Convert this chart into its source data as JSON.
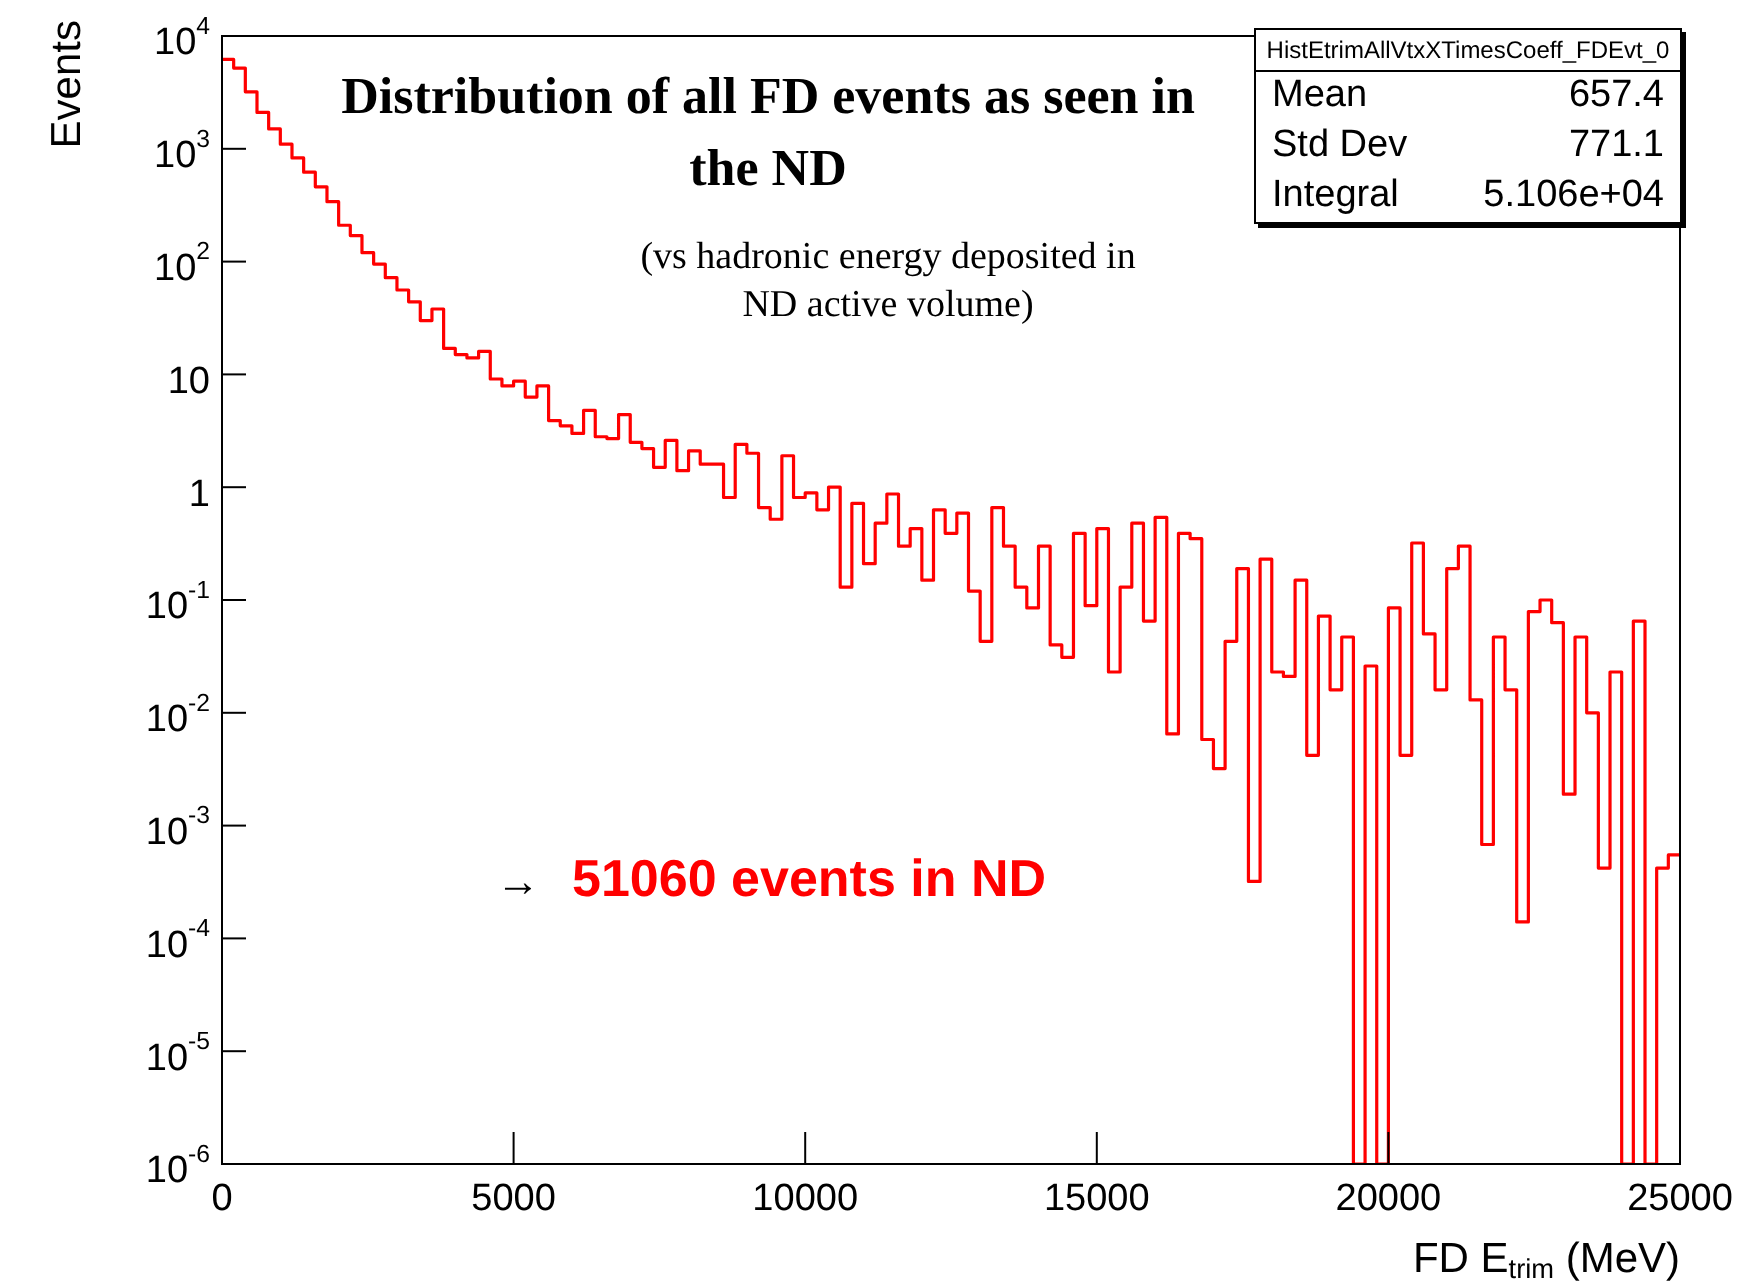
{
  "chart_data": {
    "type": "histogram",
    "title": "Distribution of all FD events as seen in the ND",
    "subtitle": "(vs hadronic energy deposited in ND active volume)",
    "xlabel": "FD E$_{trim}$ (MeV)",
    "ylabel": "Events",
    "color": "#ff0000",
    "log": "y",
    "bins": [
      0,
      200,
      400,
      600,
      800,
      1000,
      1200,
      1400,
      1600,
      1800,
      2000,
      2200,
      2400,
      2600,
      2800,
      3000,
      3200,
      3400,
      3600,
      3800,
      4000,
      4200,
      4400,
      4600,
      4800,
      5000,
      5200,
      5400,
      5600,
      5800,
      6000,
      6200,
      6400,
      6600,
      6800,
      7000,
      7200,
      7400,
      7600,
      7800,
      8000,
      8200,
      8400,
      8600,
      8800,
      9000,
      9200,
      9400,
      9600,
      9800,
      10000,
      10200,
      10400,
      10600,
      10800,
      11000,
      11200,
      11400,
      11600,
      11800,
      12000,
      12200,
      12400,
      12600,
      12800,
      13000,
      13200,
      13400,
      13600,
      13800,
      14000,
      14200,
      14400,
      14600,
      14800,
      15000,
      15200,
      15400,
      15600,
      15800,
      16000,
      16200,
      16400,
      16600,
      16800,
      17000,
      17200,
      17400,
      17600,
      17800,
      18000,
      18200,
      18400,
      18600,
      18800,
      19000,
      19200,
      19400,
      19600,
      19800,
      20000,
      20200,
      20400,
      20600,
      20800,
      21000,
      21200,
      21400,
      21600,
      21800,
      22000,
      22200,
      22400,
      22600,
      22800,
      23000,
      23200,
      23400,
      23600,
      23800,
      24000,
      24200,
      24400,
      24600,
      24800,
      25000
    ],
    "values": [
      6200,
      5200,
      3200,
      2100,
      1500,
      1100,
      830,
      620,
      460,
      340,
      210,
      170,
      120,
      95,
      72,
      56,
      44,
      30,
      38,
      17,
      15,
      14,
      16,
      9.1,
      7.9,
      8.7,
      6.3,
      7.9,
      3.9,
      3.5,
      3.0,
      4.8,
      2.8,
      2.7,
      4.4,
      2.5,
      2.2,
      1.5,
      2.6,
      1.4,
      2.1,
      1.6,
      1.6,
      0.81,
      2.4,
      2.0,
      0.66,
      0.52,
      1.9,
      0.81,
      0.89,
      0.63,
      1.0,
      0.13,
      0.72,
      0.21,
      0.48,
      0.87,
      0.3,
      0.43,
      0.15,
      0.63,
      0.39,
      0.59,
      0.12,
      0.043,
      0.66,
      0.3,
      0.13,
      0.085,
      0.3,
      0.04,
      0.031,
      0.39,
      0.089,
      0.43,
      0.023,
      0.13,
      0.48,
      0.065,
      0.54,
      0.0065,
      0.39,
      0.35,
      0.0058,
      0.0032,
      0.043,
      0.19,
      0.00032,
      0.23,
      0.023,
      0.021,
      0.15,
      0.0042,
      0.072,
      0.016,
      0.047,
      null,
      0.026,
      null,
      0.085,
      0.0042,
      0.32,
      0.05,
      0.016,
      0.19,
      0.3,
      0.013,
      0.00068,
      0.047,
      0.016,
      0.00014,
      0.079,
      0.1,
      0.063,
      0.0019,
      0.047,
      0.01,
      0.00042,
      0.023,
      null,
      0.065,
      null,
      0.00042,
      0.00055
    ],
    "xlim": [
      0,
      25000
    ],
    "xticks": [
      0,
      5000,
      10000,
      15000,
      20000,
      25000
    ],
    "ylim": [
      1e-06,
      10000
    ],
    "yticks": [
      {
        "value": 1e-06,
        "label": "10$^{-6}$"
      },
      {
        "value": 1e-05,
        "label": "10$^{-5}$"
      },
      {
        "value": 0.0001,
        "label": "10$^{-4}$"
      },
      {
        "value": 0.001,
        "label": "10$^{-3}$"
      },
      {
        "value": 0.01,
        "label": "10$^{-2}$"
      },
      {
        "value": 0.1,
        "label": "10$^{-1}$"
      },
      1,
      10,
      {
        "value": 100,
        "label": "10$^{2}$"
      },
      {
        "value": 1000,
        "label": "10$^{3}$"
      },
      {
        "value": 10000,
        "label": "10$^{4}$"
      }
    ],
    "annotations": [
      "HistEtrimAllVtxXTimesCoeff_FDEvt_0",
      "Mean",
      "657.4",
      "Std Dev",
      "771.1",
      "Integral",
      "5.106e+04",
      "→",
      "51060 events in ND"
    ]
  }
}
